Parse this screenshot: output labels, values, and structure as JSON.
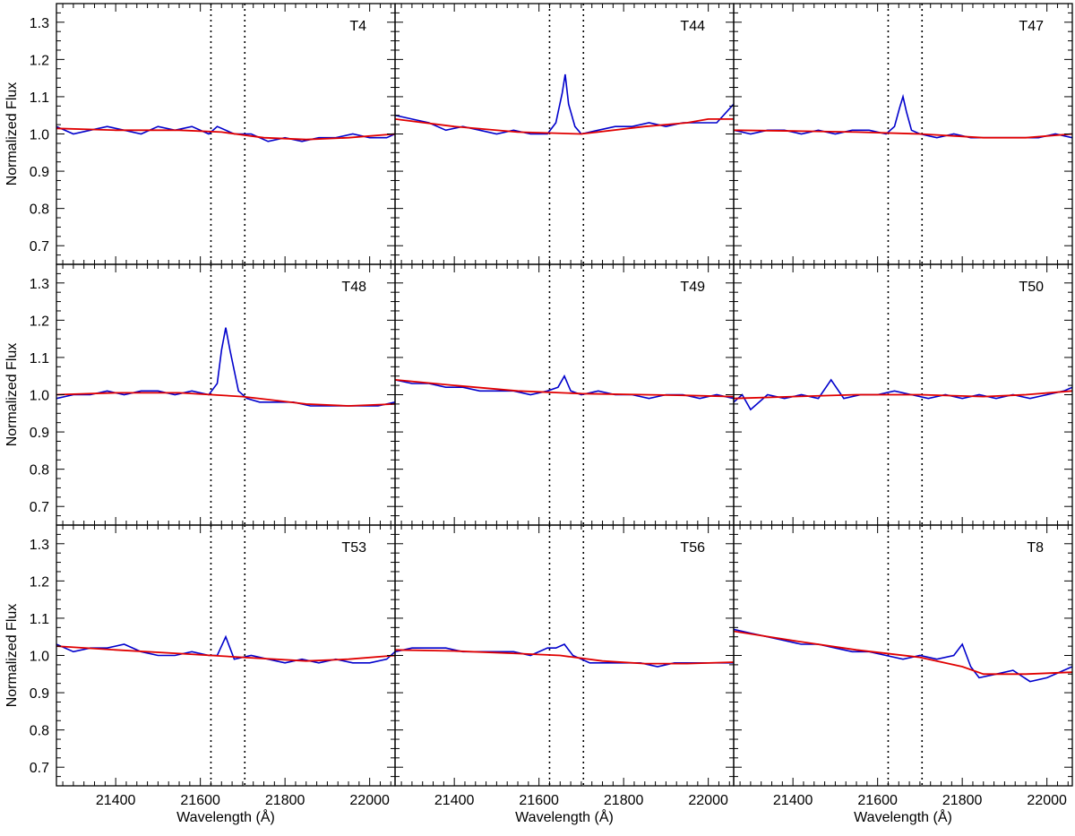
{
  "chart_data": {
    "type": "line",
    "layout": "3x3 grid of panels sharing axes",
    "xlabel": "Wavelength (Å)",
    "ylabel": "Normalized Flux",
    "xlim": [
      21260,
      22060
    ],
    "ylim": [
      0.65,
      1.35
    ],
    "xticks": [
      21400,
      21600,
      21800,
      22000
    ],
    "xtick_labels": [
      "21400",
      "21600",
      "21800",
      "22000"
    ],
    "yticks": [
      0.7,
      0.8,
      0.9,
      1.0,
      1.1,
      1.2,
      1.3
    ],
    "ytick_labels": [
      "0.7",
      "0.8",
      "0.9",
      "1.0",
      "1.1",
      "1.2",
      "1.3"
    ],
    "reference_lines": {
      "style": "dotted vertical",
      "x": [
        21625,
        21705
      ]
    },
    "grid": false,
    "legend": "none",
    "colors": {
      "spectrum": "#0000cc",
      "fit": "#e00000",
      "reference": "#000000"
    },
    "series_definitions": [
      {
        "key": "spectrum",
        "description_color": "#0000cc"
      },
      {
        "key": "fit",
        "description_color": "#e00000"
      }
    ],
    "panels": [
      {
        "label": "T4",
        "spectrum": {
          "x": [
            21260,
            21300,
            21340,
            21380,
            21420,
            21460,
            21500,
            21540,
            21580,
            21620,
            21640,
            21680,
            21720,
            21760,
            21800,
            21840,
            21880,
            21920,
            21960,
            22000,
            22040,
            22060
          ],
          "y": [
            1.02,
            1.0,
            1.01,
            1.02,
            1.01,
            1.0,
            1.02,
            1.01,
            1.02,
            1.0,
            1.02,
            1.0,
            1.0,
            0.98,
            0.99,
            0.98,
            0.99,
            0.99,
            1.0,
            0.99,
            0.99,
            1.0
          ]
        },
        "fit": {
          "x": [
            21260,
            21400,
            21550,
            21650,
            21750,
            21850,
            21950,
            22060
          ],
          "y": [
            1.015,
            1.01,
            1.01,
            1.005,
            0.99,
            0.985,
            0.99,
            1.0
          ]
        }
      },
      {
        "label": "T44",
        "spectrum": {
          "x": [
            21260,
            21300,
            21340,
            21380,
            21420,
            21460,
            21500,
            21540,
            21580,
            21620,
            21640,
            21655,
            21662,
            21670,
            21685,
            21700,
            21740,
            21780,
            21820,
            21860,
            21900,
            21940,
            21980,
            22020,
            22060
          ],
          "y": [
            1.05,
            1.04,
            1.03,
            1.01,
            1.02,
            1.01,
            1.0,
            1.01,
            1.0,
            1.0,
            1.03,
            1.11,
            1.16,
            1.08,
            1.02,
            1.0,
            1.01,
            1.02,
            1.02,
            1.03,
            1.02,
            1.03,
            1.03,
            1.03,
            1.08
          ]
        },
        "fit": {
          "x": [
            21260,
            21400,
            21550,
            21700,
            21850,
            21950,
            22000,
            22060
          ],
          "y": [
            1.04,
            1.02,
            1.005,
            1.0,
            1.02,
            1.03,
            1.04,
            1.04
          ]
        }
      },
      {
        "label": "T47",
        "spectrum": {
          "x": [
            21260,
            21300,
            21340,
            21380,
            21420,
            21460,
            21500,
            21540,
            21580,
            21620,
            21640,
            21652,
            21660,
            21668,
            21680,
            21700,
            21740,
            21780,
            21820,
            21860,
            21900,
            21940,
            21980,
            22020,
            22060
          ],
          "y": [
            1.01,
            1.0,
            1.01,
            1.01,
            1.0,
            1.01,
            1.0,
            1.01,
            1.01,
            1.0,
            1.02,
            1.07,
            1.1,
            1.06,
            1.01,
            1.0,
            0.99,
            1.0,
            0.99,
            0.99,
            0.99,
            0.99,
            0.99,
            1.0,
            0.99
          ]
        },
        "fit": {
          "x": [
            21260,
            21400,
            21550,
            21700,
            21850,
            21950,
            22060
          ],
          "y": [
            1.01,
            1.008,
            1.005,
            1.0,
            0.99,
            0.99,
            1.0
          ]
        }
      },
      {
        "label": "T48",
        "spectrum": {
          "x": [
            21260,
            21300,
            21340,
            21380,
            21420,
            21460,
            21500,
            21540,
            21580,
            21620,
            21640,
            21650,
            21660,
            21670,
            21690,
            21710,
            21740,
            21780,
            21820,
            21860,
            21900,
            21940,
            21980,
            22020,
            22060
          ],
          "y": [
            0.99,
            1.0,
            1.0,
            1.01,
            1.0,
            1.01,
            1.01,
            1.0,
            1.01,
            1.0,
            1.03,
            1.12,
            1.18,
            1.12,
            1.01,
            0.99,
            0.98,
            0.98,
            0.98,
            0.97,
            0.97,
            0.97,
            0.97,
            0.97,
            0.98
          ]
        },
        "fit": {
          "x": [
            21260,
            21400,
            21550,
            21700,
            21850,
            21950,
            22060
          ],
          "y": [
            1.0,
            1.005,
            1.005,
            0.995,
            0.975,
            0.97,
            0.975
          ]
        }
      },
      {
        "label": "T49",
        "spectrum": {
          "x": [
            21260,
            21300,
            21340,
            21380,
            21420,
            21460,
            21500,
            21540,
            21580,
            21620,
            21645,
            21660,
            21675,
            21700,
            21740,
            21780,
            21820,
            21860,
            21900,
            21940,
            21980,
            22020,
            22060
          ],
          "y": [
            1.04,
            1.03,
            1.03,
            1.02,
            1.02,
            1.01,
            1.01,
            1.01,
            1.0,
            1.01,
            1.02,
            1.05,
            1.01,
            1.0,
            1.01,
            1.0,
            1.0,
            0.99,
            1.0,
            1.0,
            0.99,
            1.0,
            0.99
          ]
        },
        "fit": {
          "x": [
            21260,
            21400,
            21550,
            21700,
            21850,
            21950,
            22060
          ],
          "y": [
            1.04,
            1.025,
            1.01,
            1.003,
            1.0,
            0.998,
            0.995
          ]
        }
      },
      {
        "label": "T50",
        "spectrum": {
          "x": [
            21260,
            21280,
            21300,
            21340,
            21380,
            21420,
            21460,
            21490,
            21520,
            21560,
            21600,
            21640,
            21680,
            21720,
            21760,
            21800,
            21840,
            21880,
            21920,
            21960,
            22000,
            22040,
            22060
          ],
          "y": [
            0.98,
            1.0,
            0.96,
            1.0,
            0.99,
            1.0,
            0.99,
            1.04,
            0.99,
            1.0,
            1.0,
            1.01,
            1.0,
            0.99,
            1.0,
            0.99,
            1.0,
            0.99,
            1.0,
            0.99,
            1.0,
            1.01,
            1.02
          ]
        },
        "fit": {
          "x": [
            21260,
            21400,
            21550,
            21700,
            21850,
            21950,
            22060
          ],
          "y": [
            0.99,
            0.995,
            1.0,
            1.0,
            0.995,
            1.0,
            1.01
          ]
        }
      },
      {
        "label": "T53",
        "spectrum": {
          "x": [
            21260,
            21300,
            21340,
            21380,
            21420,
            21460,
            21500,
            21540,
            21580,
            21620,
            21640,
            21660,
            21680,
            21720,
            21760,
            21800,
            21840,
            21880,
            21920,
            21960,
            22000,
            22040,
            22060
          ],
          "y": [
            1.03,
            1.01,
            1.02,
            1.02,
            1.03,
            1.01,
            1.0,
            1.0,
            1.01,
            1.0,
            1.0,
            1.05,
            0.99,
            1.0,
            0.99,
            0.98,
            0.99,
            0.98,
            0.99,
            0.98,
            0.98,
            0.99,
            1.01
          ]
        },
        "fit": {
          "x": [
            21260,
            21400,
            21550,
            21700,
            21850,
            21950,
            22060
          ],
          "y": [
            1.025,
            1.015,
            1.005,
            0.995,
            0.985,
            0.99,
            1.0
          ]
        }
      },
      {
        "label": "T56",
        "spectrum": {
          "x": [
            21260,
            21300,
            21340,
            21380,
            21420,
            21460,
            21500,
            21540,
            21580,
            21620,
            21640,
            21660,
            21680,
            21720,
            21760,
            21800,
            21840,
            21880,
            21920,
            21960,
            22000,
            22040,
            22060
          ],
          "y": [
            1.01,
            1.02,
            1.02,
            1.02,
            1.01,
            1.01,
            1.01,
            1.01,
            1.0,
            1.02,
            1.02,
            1.03,
            1.0,
            0.98,
            0.98,
            0.98,
            0.98,
            0.97,
            0.98,
            0.98,
            0.98,
            0.98,
            0.98
          ]
        },
        "fit": {
          "x": [
            21260,
            21400,
            21550,
            21650,
            21750,
            21850,
            21950,
            22060
          ],
          "y": [
            1.015,
            1.012,
            1.005,
            1.0,
            0.985,
            0.978,
            0.978,
            0.982
          ]
        }
      },
      {
        "label": "T8",
        "spectrum": {
          "x": [
            21260,
            21300,
            21340,
            21380,
            21420,
            21460,
            21500,
            21540,
            21580,
            21620,
            21660,
            21700,
            21740,
            21780,
            21800,
            21820,
            21840,
            21880,
            21920,
            21960,
            22000,
            22040,
            22060
          ],
          "y": [
            1.07,
            1.06,
            1.05,
            1.04,
            1.03,
            1.03,
            1.02,
            1.01,
            1.01,
            1.0,
            0.99,
            1.0,
            0.99,
            1.0,
            1.03,
            0.97,
            0.94,
            0.95,
            0.96,
            0.93,
            0.94,
            0.96,
            0.97
          ]
        },
        "fit": {
          "x": [
            21260,
            21400,
            21550,
            21700,
            21800,
            21850,
            21950,
            22060
          ],
          "y": [
            1.065,
            1.04,
            1.015,
            0.995,
            0.97,
            0.95,
            0.95,
            0.955
          ]
        }
      }
    ]
  }
}
